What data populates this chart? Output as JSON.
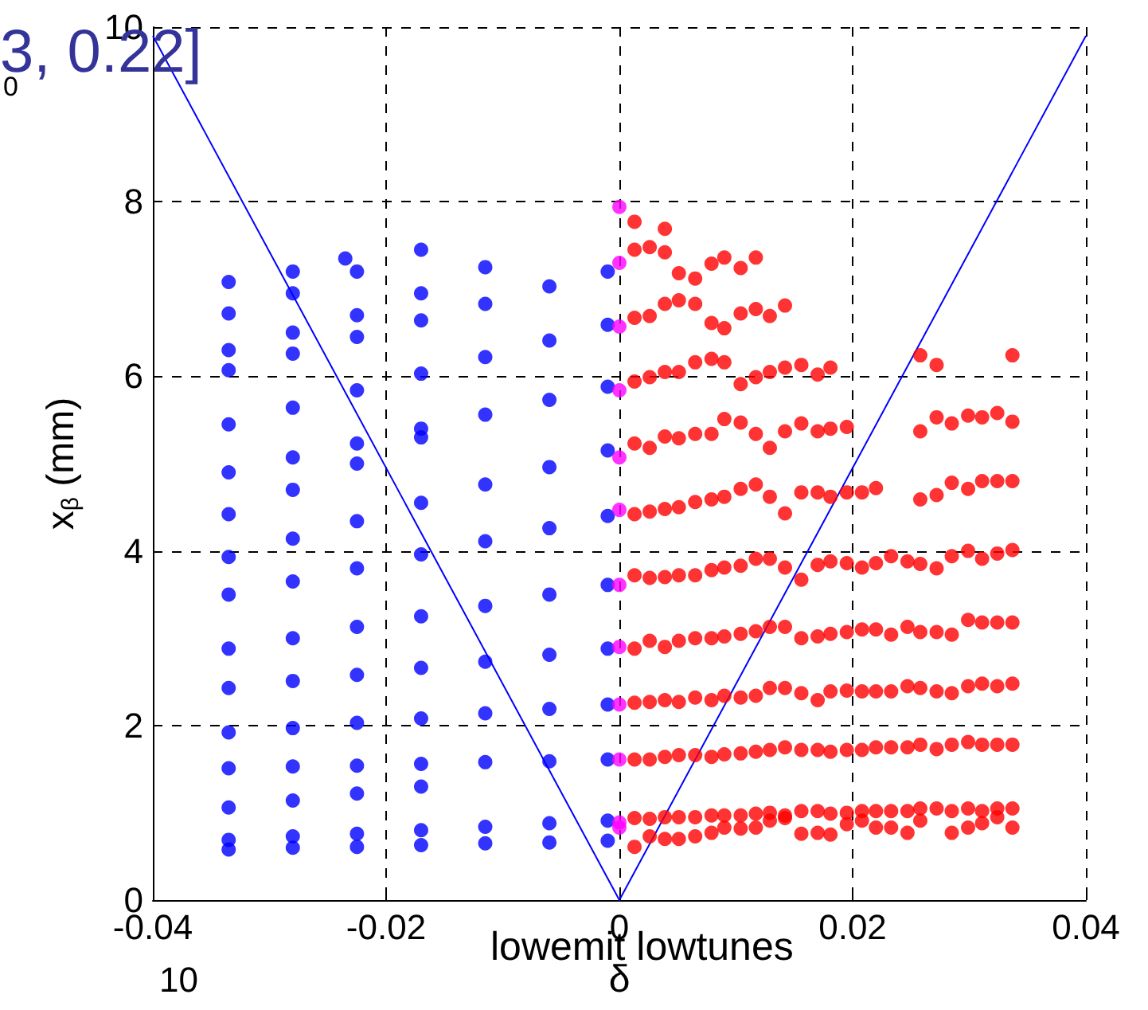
{
  "chart_data": {
    "type": "scatter",
    "xlabel": "δ",
    "ylabel": "x$_{β}$ (mm)",
    "annotations": [
      "3, 0.22]",
      "0",
      "lowemit lowtunes",
      "10"
    ],
    "xlim": [
      -0.04,
      0.04
    ],
    "xticks": [
      -0.04,
      -0.02,
      0,
      0.02,
      0.04
    ],
    "ylim": [
      0,
      10
    ],
    "yticks": [
      0,
      2,
      4,
      6,
      8,
      10
    ],
    "grid": true,
    "marker": "circle",
    "series": [
      {
        "color": "#0000ff",
        "x": [
          -0.0335,
          -0.028,
          -0.0225,
          -0.017,
          -0.0115,
          -0.006,
          -0.001,
          -0.0335,
          -0.028,
          -0.0225,
          -0.017,
          -0.0115,
          -0.006,
          -0.001,
          -0.0335,
          -0.028,
          -0.0225,
          -0.017,
          -0.0115,
          -0.006,
          -0.001,
          -0.0335,
          -0.028,
          -0.0225,
          -0.017,
          -0.0115,
          -0.006,
          -0.001,
          -0.0335,
          -0.028,
          -0.0225,
          -0.017,
          -0.0115,
          -0.006,
          -0.001,
          -0.0335,
          -0.028,
          -0.0225,
          -0.017,
          -0.0115,
          -0.006,
          -0.001,
          -0.0335,
          -0.028,
          -0.0225,
          -0.017,
          -0.0115,
          -0.006,
          -0.001,
          -0.0335,
          -0.028,
          -0.0225,
          -0.017,
          -0.0115,
          -0.006,
          -0.001,
          -0.0335,
          -0.028,
          -0.0225,
          -0.017,
          -0.0115,
          -0.006,
          -0.001,
          -0.0335,
          -0.028,
          -0.0225,
          -0.017,
          -0.0335,
          -0.028,
          -0.0225,
          -0.017,
          -0.0115,
          -0.006,
          -0.001,
          -0.0335,
          -0.028,
          -0.0225,
          -0.017,
          -0.0115,
          -0.006,
          -0.001,
          -0.0335,
          -0.028,
          -0.0235,
          -0.0335,
          -0.028,
          -0.0225,
          -0.017,
          -0.0335,
          -0.028,
          -0.0225,
          -0.017,
          -0.0115,
          -0.0335,
          -0.028,
          -0.0225,
          -0.017
        ],
        "values": [
          6.07,
          6.26,
          6.45,
          6.64,
          6.83,
          7.03,
          7.2,
          5.45,
          5.64,
          5.84,
          6.03,
          6.22,
          6.41,
          6.59,
          4.9,
          5.07,
          5.23,
          5.4,
          5.56,
          5.73,
          5.88,
          3.93,
          4.14,
          4.34,
          4.55,
          4.76,
          4.96,
          5.15,
          3.5,
          3.65,
          3.8,
          3.96,
          4.11,
          4.26,
          4.4,
          2.88,
          3.0,
          3.13,
          3.25,
          3.37,
          3.5,
          3.61,
          2.43,
          2.51,
          2.58,
          2.66,
          2.73,
          2.81,
          2.88,
          1.92,
          1.97,
          2.03,
          2.08,
          2.14,
          2.19,
          2.24,
          1.51,
          1.53,
          1.54,
          1.56,
          1.58,
          1.59,
          1.61,
          1.06,
          1.14,
          1.22,
          1.3,
          0.69,
          0.73,
          0.76,
          0.8,
          0.84,
          0.88,
          0.91,
          0.58,
          0.6,
          0.61,
          0.63,
          0.65,
          0.66,
          0.68,
          7.08,
          7.2,
          7.35,
          6.72,
          6.95,
          7.2,
          7.45,
          6.3,
          6.5,
          6.7,
          6.95,
          7.25,
          4.42,
          4.7,
          5.0,
          5.3
        ]
      },
      {
        "color": "#ff00ff",
        "x": [
          0,
          0,
          0,
          0,
          0,
          0,
          0,
          0,
          0,
          0,
          0,
          0
        ],
        "values": [
          7.94,
          7.3,
          6.57,
          5.84,
          5.07,
          4.47,
          3.61,
          2.9,
          2.24,
          1.61,
          0.89,
          0.83
        ]
      },
      {
        "color": "#ff0000",
        "x": [
          0.0013,
          0.0039,
          0.0013,
          0.0026,
          0.0039,
          0.0051,
          0.0065,
          0.0079,
          0.009,
          0.0104,
          0.0117,
          0.0013,
          0.0026,
          0.0039,
          0.0051,
          0.0065,
          0.0079,
          0.009,
          0.0104,
          0.0117,
          0.0129,
          0.0142,
          0.0013,
          0.0026,
          0.0039,
          0.0051,
          0.0065,
          0.0079,
          0.009,
          0.0104,
          0.0117,
          0.0129,
          0.0142,
          0.0156,
          0.017,
          0.0181,
          0.0258,
          0.0272,
          0.0337,
          0.0013,
          0.0026,
          0.0039,
          0.0051,
          0.0065,
          0.0079,
          0.009,
          0.0104,
          0.0117,
          0.0129,
          0.0142,
          0.0156,
          0.017,
          0.0181,
          0.0195,
          0.0258,
          0.0272,
          0.0285,
          0.0299,
          0.0311,
          0.0324,
          0.0337,
          0.0013,
          0.0026,
          0.0039,
          0.0051,
          0.0065,
          0.0079,
          0.009,
          0.0104,
          0.0117,
          0.0129,
          0.0142,
          0.0156,
          0.017,
          0.0181,
          0.0195,
          0.0208,
          0.022,
          0.0258,
          0.0272,
          0.0285,
          0.0299,
          0.0311,
          0.0324,
          0.0337,
          0.0013,
          0.0026,
          0.0039,
          0.0051,
          0.0065,
          0.0079,
          0.009,
          0.0104,
          0.0117,
          0.0129,
          0.0142,
          0.0156,
          0.017,
          0.0181,
          0.0195,
          0.0208,
          0.022,
          0.0233,
          0.0247,
          0.0258,
          0.0272,
          0.0285,
          0.0299,
          0.0311,
          0.0324,
          0.0337,
          0.0013,
          0.0026,
          0.0039,
          0.0051,
          0.0065,
          0.0079,
          0.009,
          0.0104,
          0.0117,
          0.0129,
          0.0142,
          0.0156,
          0.017,
          0.0181,
          0.0195,
          0.0208,
          0.022,
          0.0233,
          0.0247,
          0.0258,
          0.0272,
          0.0285,
          0.0299,
          0.0311,
          0.0324,
          0.0337,
          0.0013,
          0.0026,
          0.0039,
          0.0051,
          0.0065,
          0.0079,
          0.009,
          0.0104,
          0.0117,
          0.0129,
          0.0142,
          0.0156,
          0.017,
          0.0181,
          0.0195,
          0.0208,
          0.022,
          0.0233,
          0.0247,
          0.0258,
          0.0272,
          0.0285,
          0.0299,
          0.0311,
          0.0324,
          0.0337,
          0.0013,
          0.0026,
          0.0039,
          0.0051,
          0.0065,
          0.0079,
          0.009,
          0.0104,
          0.0117,
          0.0129,
          0.0142,
          0.0156,
          0.017,
          0.0181,
          0.0195,
          0.0208,
          0.022,
          0.0233,
          0.0247,
          0.0258,
          0.0272,
          0.0285,
          0.0299,
          0.0311,
          0.0324,
          0.0337,
          0.0013,
          0.0026,
          0.0039,
          0.0051,
          0.0065,
          0.0079,
          0.009,
          0.0104,
          0.0117,
          0.0129,
          0.0142,
          0.0156,
          0.017,
          0.0181,
          0.0195,
          0.0208,
          0.022,
          0.0233,
          0.0247,
          0.0258,
          0.0272,
          0.0285,
          0.0299,
          0.0311,
          0.0324,
          0.0337,
          0.0013,
          0.0026,
          0.0039,
          0.0051,
          0.0065,
          0.0079,
          0.009,
          0.0104,
          0.0117,
          0.0129,
          0.0142,
          0.0156,
          0.017,
          0.0181,
          0.0195,
          0.0208,
          0.022,
          0.0233,
          0.0247,
          0.0258,
          0.0285,
          0.0299,
          0.0311,
          0.0324,
          0.0337
        ],
        "values": [
          7.77,
          7.69,
          7.45,
          7.48,
          7.42,
          7.18,
          7.12,
          7.29,
          7.36,
          7.24,
          7.36,
          6.67,
          6.69,
          6.83,
          6.87,
          6.83,
          6.61,
          6.55,
          6.72,
          6.77,
          6.69,
          6.81,
          5.94,
          5.99,
          6.05,
          6.05,
          6.16,
          6.2,
          6.16,
          5.91,
          5.99,
          6.05,
          6.1,
          6.13,
          6.02,
          6.1,
          6.24,
          6.13,
          6.24,
          5.23,
          5.18,
          5.31,
          5.29,
          5.34,
          5.34,
          5.51,
          5.47,
          5.34,
          5.18,
          5.37,
          5.46,
          5.37,
          5.4,
          5.42,
          5.37,
          5.53,
          5.46,
          5.55,
          5.53,
          5.58,
          5.48,
          4.42,
          4.45,
          4.48,
          4.5,
          4.56,
          4.59,
          4.62,
          4.71,
          4.76,
          4.62,
          4.43,
          4.67,
          4.67,
          4.62,
          4.67,
          4.67,
          4.72,
          4.59,
          4.64,
          4.78,
          4.71,
          4.8,
          4.8,
          4.8,
          3.72,
          3.69,
          3.7,
          3.72,
          3.72,
          3.78,
          3.81,
          3.83,
          3.91,
          3.91,
          3.81,
          3.67,
          3.84,
          3.88,
          3.86,
          3.81,
          3.86,
          3.94,
          3.88,
          3.85,
          3.8,
          3.94,
          4.0,
          3.91,
          3.97,
          4.01,
          2.88,
          2.97,
          2.9,
          2.97,
          3.0,
          3.0,
          3.02,
          3.05,
          3.08,
          3.13,
          3.13,
          3.0,
          3.02,
          3.05,
          3.07,
          3.1,
          3.1,
          3.04,
          3.13,
          3.07,
          3.07,
          3.04,
          3.21,
          3.18,
          3.18,
          3.18,
          2.26,
          2.27,
          2.29,
          2.27,
          2.32,
          2.29,
          2.34,
          2.32,
          2.34,
          2.43,
          2.43,
          2.37,
          2.29,
          2.39,
          2.4,
          2.39,
          2.39,
          2.39,
          2.45,
          2.43,
          2.39,
          2.37,
          2.45,
          2.48,
          2.45,
          2.48,
          1.61,
          1.61,
          1.64,
          1.66,
          1.66,
          1.64,
          1.67,
          1.68,
          1.7,
          1.72,
          1.75,
          1.72,
          1.72,
          1.7,
          1.72,
          1.72,
          1.75,
          1.75,
          1.75,
          1.78,
          1.73,
          1.78,
          1.81,
          1.78,
          1.78,
          1.78,
          0.94,
          0.93,
          0.95,
          0.95,
          0.95,
          0.97,
          0.97,
          0.97,
          0.99,
          1.0,
          0.97,
          1.02,
          1.02,
          0.99,
          1.0,
          1.02,
          1.02,
          1.02,
          1.02,
          1.05,
          1.05,
          1.02,
          1.05,
          1.02,
          1.05,
          1.05,
          0.61,
          0.73,
          0.7,
          0.7,
          0.73,
          0.77,
          0.83,
          0.82,
          0.83,
          0.91,
          0.94,
          0.76,
          0.77,
          0.75,
          0.87,
          0.91,
          0.83,
          0.83,
          0.77,
          0.91,
          0.77,
          0.83,
          0.88,
          0.95,
          0.83
        ]
      },
      {
        "type": "line",
        "marker": "none",
        "color": "#0000ff",
        "x": [
          -0.04,
          0,
          0.04
        ],
        "values": [
          9.9,
          0,
          9.9
        ]
      }
    ]
  }
}
